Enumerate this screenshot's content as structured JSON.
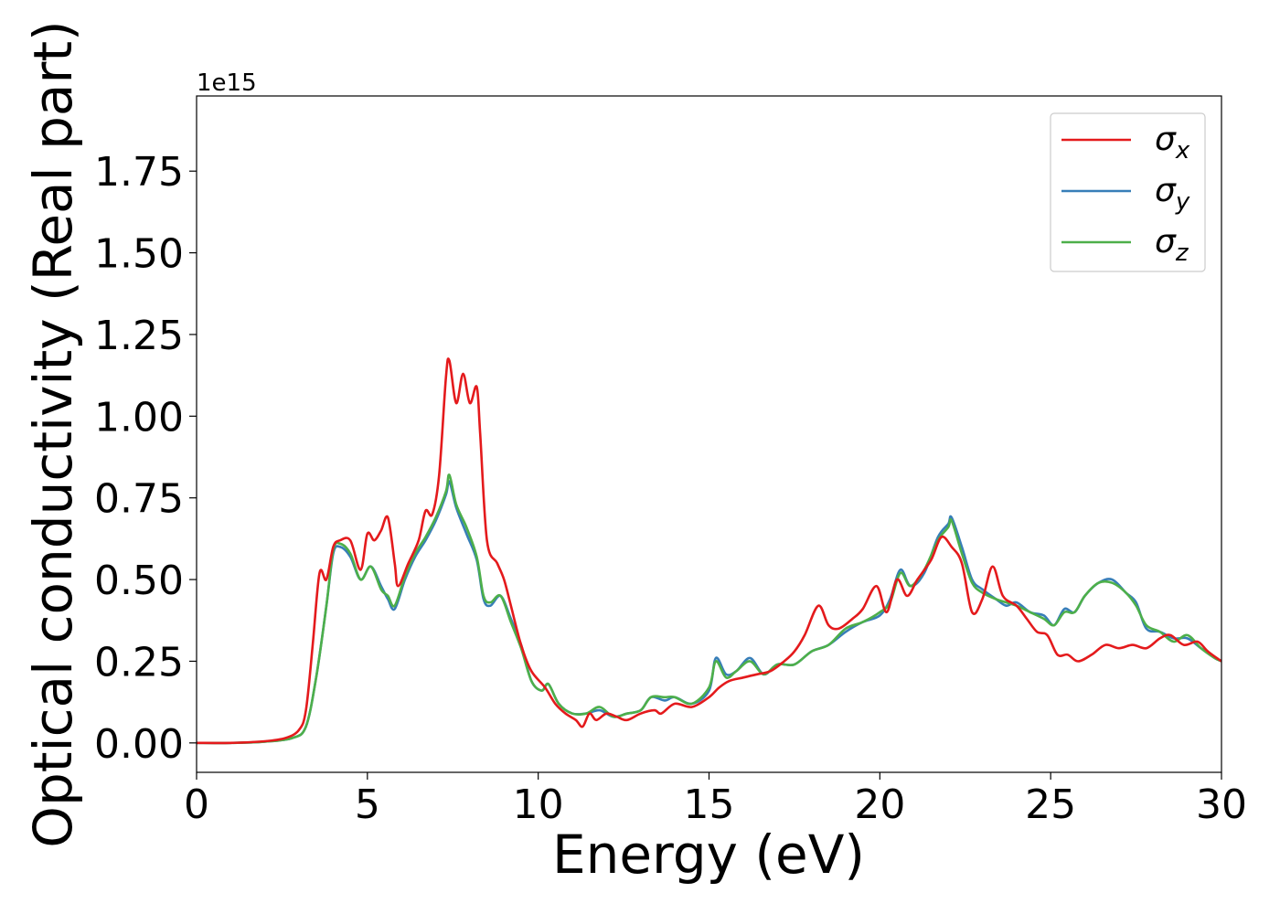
{
  "chart_data": {
    "type": "line",
    "xlabel": "Energy (eV)",
    "ylabel": "Optical conductivity (Real part)",
    "y_multiplier_label": "1e15",
    "xlim": [
      0,
      30
    ],
    "ylim": [
      -0.09,
      1.98
    ],
    "xticks": [
      0,
      5,
      10,
      15,
      20,
      25,
      30
    ],
    "xtick_labels": [
      "0",
      "5",
      "10",
      "15",
      "20",
      "25",
      "30"
    ],
    "yticks": [
      0.0,
      0.25,
      0.5,
      0.75,
      1.0,
      1.25,
      1.5,
      1.75
    ],
    "ytick_labels": [
      "0.00",
      "0.25",
      "0.50",
      "0.75",
      "1.00",
      "1.25",
      "1.50",
      "1.75"
    ],
    "grid": false,
    "legend_position": "top-right",
    "series": [
      {
        "name": "σx",
        "legend_main": "σ",
        "legend_sub": "x",
        "color": "#e41a1c",
        "points": [
          [
            0,
            0
          ],
          [
            1,
            0.0
          ],
          [
            2,
            0.005
          ],
          [
            2.6,
            0.015
          ],
          [
            3.0,
            0.04
          ],
          [
            3.2,
            0.1
          ],
          [
            3.4,
            0.3
          ],
          [
            3.6,
            0.52
          ],
          [
            3.8,
            0.5
          ],
          [
            4.0,
            0.6
          ],
          [
            4.2,
            0.62
          ],
          [
            4.5,
            0.62
          ],
          [
            4.8,
            0.53
          ],
          [
            5.0,
            0.64
          ],
          [
            5.2,
            0.62
          ],
          [
            5.4,
            0.65
          ],
          [
            5.6,
            0.69
          ],
          [
            5.8,
            0.55
          ],
          [
            5.9,
            0.48
          ],
          [
            6.2,
            0.55
          ],
          [
            6.5,
            0.62
          ],
          [
            6.7,
            0.71
          ],
          [
            6.9,
            0.7
          ],
          [
            7.1,
            0.82
          ],
          [
            7.3,
            1.12
          ],
          [
            7.4,
            1.17
          ],
          [
            7.6,
            1.04
          ],
          [
            7.8,
            1.13
          ],
          [
            8.0,
            1.04
          ],
          [
            8.2,
            1.09
          ],
          [
            8.3,
            0.95
          ],
          [
            8.5,
            0.62
          ],
          [
            8.8,
            0.55
          ],
          [
            9.0,
            0.5
          ],
          [
            9.2,
            0.42
          ],
          [
            9.5,
            0.3
          ],
          [
            9.8,
            0.22
          ],
          [
            10.2,
            0.17
          ],
          [
            10.5,
            0.12
          ],
          [
            10.8,
            0.09
          ],
          [
            11.1,
            0.07
          ],
          [
            11.3,
            0.05
          ],
          [
            11.5,
            0.09
          ],
          [
            11.7,
            0.07
          ],
          [
            12.0,
            0.09
          ],
          [
            12.3,
            0.08
          ],
          [
            12.6,
            0.07
          ],
          [
            13.0,
            0.09
          ],
          [
            13.4,
            0.1
          ],
          [
            13.6,
            0.09
          ],
          [
            14.0,
            0.12
          ],
          [
            14.5,
            0.11
          ],
          [
            15.0,
            0.14
          ],
          [
            15.3,
            0.17
          ],
          [
            15.6,
            0.19
          ],
          [
            16.0,
            0.2
          ],
          [
            16.4,
            0.21
          ],
          [
            16.8,
            0.22
          ],
          [
            17.2,
            0.25
          ],
          [
            17.5,
            0.28
          ],
          [
            17.8,
            0.33
          ],
          [
            18.2,
            0.42
          ],
          [
            18.5,
            0.36
          ],
          [
            18.8,
            0.35
          ],
          [
            19.2,
            0.38
          ],
          [
            19.5,
            0.41
          ],
          [
            19.9,
            0.48
          ],
          [
            20.2,
            0.4
          ],
          [
            20.5,
            0.5
          ],
          [
            20.8,
            0.45
          ],
          [
            21.1,
            0.5
          ],
          [
            21.5,
            0.56
          ],
          [
            21.8,
            0.63
          ],
          [
            22.1,
            0.6
          ],
          [
            22.4,
            0.55
          ],
          [
            22.7,
            0.4
          ],
          [
            23.0,
            0.44
          ],
          [
            23.3,
            0.54
          ],
          [
            23.6,
            0.45
          ],
          [
            24.0,
            0.42
          ],
          [
            24.3,
            0.38
          ],
          [
            24.6,
            0.34
          ],
          [
            24.9,
            0.33
          ],
          [
            25.2,
            0.27
          ],
          [
            25.5,
            0.27
          ],
          [
            25.8,
            0.25
          ],
          [
            26.2,
            0.27
          ],
          [
            26.6,
            0.3
          ],
          [
            27.0,
            0.29
          ],
          [
            27.4,
            0.3
          ],
          [
            27.8,
            0.29
          ],
          [
            28.2,
            0.32
          ],
          [
            28.5,
            0.33
          ],
          [
            28.9,
            0.3
          ],
          [
            29.3,
            0.31
          ],
          [
            29.6,
            0.28
          ],
          [
            30.0,
            0.25
          ]
        ]
      },
      {
        "name": "σy",
        "legend_main": "σ",
        "legend_sub": "y",
        "color": "#377eb8",
        "points": [
          [
            0,
            0
          ],
          [
            1,
            0.0
          ],
          [
            2,
            0.004
          ],
          [
            2.8,
            0.015
          ],
          [
            3.2,
            0.05
          ],
          [
            3.5,
            0.2
          ],
          [
            3.8,
            0.42
          ],
          [
            4.0,
            0.58
          ],
          [
            4.2,
            0.6
          ],
          [
            4.5,
            0.57
          ],
          [
            4.8,
            0.5
          ],
          [
            5.1,
            0.54
          ],
          [
            5.4,
            0.48
          ],
          [
            5.6,
            0.44
          ],
          [
            5.8,
            0.41
          ],
          [
            6.1,
            0.5
          ],
          [
            6.4,
            0.57
          ],
          [
            6.7,
            0.62
          ],
          [
            7.0,
            0.68
          ],
          [
            7.3,
            0.76
          ],
          [
            7.4,
            0.8
          ],
          [
            7.6,
            0.72
          ],
          [
            7.9,
            0.64
          ],
          [
            8.2,
            0.56
          ],
          [
            8.4,
            0.44
          ],
          [
            8.6,
            0.42
          ],
          [
            8.9,
            0.45
          ],
          [
            9.2,
            0.38
          ],
          [
            9.5,
            0.3
          ],
          [
            9.8,
            0.19
          ],
          [
            10.1,
            0.16
          ],
          [
            10.3,
            0.18
          ],
          [
            10.6,
            0.12
          ],
          [
            11.0,
            0.09
          ],
          [
            11.4,
            0.09
          ],
          [
            11.8,
            0.1
          ],
          [
            12.2,
            0.08
          ],
          [
            12.6,
            0.09
          ],
          [
            13.0,
            0.1
          ],
          [
            13.3,
            0.14
          ],
          [
            13.7,
            0.13
          ],
          [
            14.0,
            0.14
          ],
          [
            14.5,
            0.12
          ],
          [
            15.0,
            0.16
          ],
          [
            15.2,
            0.26
          ],
          [
            15.5,
            0.21
          ],
          [
            15.8,
            0.22
          ],
          [
            16.2,
            0.26
          ],
          [
            16.6,
            0.21
          ],
          [
            17.0,
            0.24
          ],
          [
            17.5,
            0.24
          ],
          [
            18.0,
            0.28
          ],
          [
            18.5,
            0.3
          ],
          [
            19.0,
            0.34
          ],
          [
            19.5,
            0.37
          ],
          [
            20.0,
            0.39
          ],
          [
            20.3,
            0.44
          ],
          [
            20.6,
            0.53
          ],
          [
            20.9,
            0.48
          ],
          [
            21.3,
            0.52
          ],
          [
            21.7,
            0.63
          ],
          [
            22.0,
            0.67
          ],
          [
            22.1,
            0.69
          ],
          [
            22.4,
            0.6
          ],
          [
            22.7,
            0.5
          ],
          [
            23.0,
            0.47
          ],
          [
            23.4,
            0.44
          ],
          [
            23.7,
            0.42
          ],
          [
            24.0,
            0.43
          ],
          [
            24.4,
            0.4
          ],
          [
            24.8,
            0.39
          ],
          [
            25.1,
            0.36
          ],
          [
            25.4,
            0.41
          ],
          [
            25.7,
            0.4
          ],
          [
            26.0,
            0.45
          ],
          [
            26.4,
            0.49
          ],
          [
            26.8,
            0.5
          ],
          [
            27.2,
            0.46
          ],
          [
            27.5,
            0.43
          ],
          [
            27.8,
            0.35
          ],
          [
            28.2,
            0.34
          ],
          [
            28.6,
            0.32
          ],
          [
            29.0,
            0.32
          ],
          [
            29.4,
            0.29
          ],
          [
            29.8,
            0.26
          ],
          [
            30.0,
            0.25
          ]
        ]
      },
      {
        "name": "σz",
        "legend_main": "σ",
        "legend_sub": "z",
        "color": "#4daf4a",
        "points": [
          [
            0,
            0
          ],
          [
            1,
            0.0
          ],
          [
            2,
            0.004
          ],
          [
            2.8,
            0.015
          ],
          [
            3.2,
            0.05
          ],
          [
            3.5,
            0.2
          ],
          [
            3.8,
            0.42
          ],
          [
            4.0,
            0.59
          ],
          [
            4.2,
            0.61
          ],
          [
            4.5,
            0.58
          ],
          [
            4.8,
            0.5
          ],
          [
            5.1,
            0.54
          ],
          [
            5.4,
            0.47
          ],
          [
            5.6,
            0.45
          ],
          [
            5.8,
            0.42
          ],
          [
            6.1,
            0.51
          ],
          [
            6.4,
            0.58
          ],
          [
            6.7,
            0.63
          ],
          [
            7.0,
            0.69
          ],
          [
            7.3,
            0.77
          ],
          [
            7.4,
            0.82
          ],
          [
            7.6,
            0.73
          ],
          [
            7.9,
            0.66
          ],
          [
            8.2,
            0.57
          ],
          [
            8.4,
            0.45
          ],
          [
            8.6,
            0.43
          ],
          [
            8.9,
            0.45
          ],
          [
            9.2,
            0.37
          ],
          [
            9.5,
            0.29
          ],
          [
            9.8,
            0.19
          ],
          [
            10.1,
            0.16
          ],
          [
            10.3,
            0.18
          ],
          [
            10.6,
            0.12
          ],
          [
            11.0,
            0.09
          ],
          [
            11.4,
            0.09
          ],
          [
            11.8,
            0.11
          ],
          [
            12.2,
            0.08
          ],
          [
            12.6,
            0.09
          ],
          [
            13.0,
            0.1
          ],
          [
            13.3,
            0.14
          ],
          [
            13.7,
            0.14
          ],
          [
            14.0,
            0.14
          ],
          [
            14.5,
            0.12
          ],
          [
            15.0,
            0.17
          ],
          [
            15.2,
            0.25
          ],
          [
            15.5,
            0.2
          ],
          [
            15.8,
            0.22
          ],
          [
            16.2,
            0.25
          ],
          [
            16.6,
            0.21
          ],
          [
            17.0,
            0.24
          ],
          [
            17.5,
            0.24
          ],
          [
            18.0,
            0.28
          ],
          [
            18.5,
            0.3
          ],
          [
            19.0,
            0.35
          ],
          [
            19.5,
            0.37
          ],
          [
            20.0,
            0.4
          ],
          [
            20.3,
            0.43
          ],
          [
            20.6,
            0.52
          ],
          [
            20.9,
            0.48
          ],
          [
            21.3,
            0.53
          ],
          [
            21.7,
            0.62
          ],
          [
            22.0,
            0.66
          ],
          [
            22.1,
            0.68
          ],
          [
            22.4,
            0.58
          ],
          [
            22.7,
            0.49
          ],
          [
            23.0,
            0.46
          ],
          [
            23.4,
            0.44
          ],
          [
            23.7,
            0.43
          ],
          [
            24.0,
            0.42
          ],
          [
            24.4,
            0.4
          ],
          [
            24.8,
            0.38
          ],
          [
            25.1,
            0.36
          ],
          [
            25.4,
            0.4
          ],
          [
            25.7,
            0.4
          ],
          [
            26.0,
            0.45
          ],
          [
            26.4,
            0.49
          ],
          [
            26.8,
            0.49
          ],
          [
            27.2,
            0.46
          ],
          [
            27.5,
            0.42
          ],
          [
            27.8,
            0.36
          ],
          [
            28.2,
            0.34
          ],
          [
            28.6,
            0.31
          ],
          [
            29.0,
            0.33
          ],
          [
            29.4,
            0.29
          ],
          [
            29.8,
            0.26
          ],
          [
            30.0,
            0.25
          ]
        ]
      }
    ]
  }
}
